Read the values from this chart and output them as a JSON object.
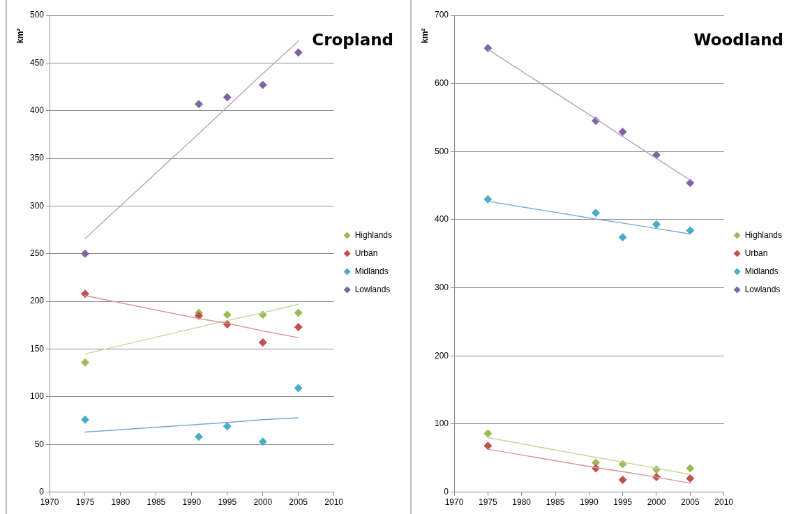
{
  "chart_data": [
    {
      "type": "scatter",
      "title": "Cropland",
      "ylabel": "km²",
      "xlim": [
        1970,
        2010
      ],
      "xticks": [
        1970,
        1975,
        1980,
        1985,
        1990,
        1995,
        2000,
        2005,
        2010
      ],
      "ylim": [
        0,
        500
      ],
      "yticks": [
        0,
        50,
        100,
        150,
        200,
        250,
        300,
        350,
        400,
        450,
        500
      ],
      "grid": "y",
      "legend": "right",
      "marker": "diamond",
      "x": [
        1975,
        1991,
        1995,
        2000,
        2005
      ],
      "series": [
        {
          "name": "Highlands",
          "color": "#9bbb59",
          "values": [
            136,
            188,
            186,
            186,
            188
          ]
        },
        {
          "name": "Urban",
          "color": "#c0504d",
          "values": [
            208,
            185,
            176,
            157,
            173
          ]
        },
        {
          "name": "Midlands",
          "color": "#4bacc6",
          "values": [
            76,
            58,
            69,
            53,
            109
          ]
        },
        {
          "name": "Lowlands",
          "color": "#8064a2",
          "values": [
            250,
            407,
            414,
            427,
            461
          ]
        },
        {
          "type": "line",
          "marker": "none",
          "color": "#c3d69b",
          "values": [
            145,
            173,
            180,
            188,
            197
          ]
        },
        {
          "type": "line",
          "marker": "none",
          "color": "#d99694",
          "values": [
            206,
            182,
            177,
            169,
            162
          ]
        },
        {
          "type": "line",
          "marker": "none",
          "color": "#7ba7d4",
          "values": [
            63,
            71,
            73,
            76,
            78
          ]
        },
        {
          "type": "line",
          "marker": "none",
          "color": "#b3a2c7",
          "values": [
            266,
            376,
            404,
            439,
            473
          ]
        }
      ]
    },
    {
      "type": "scatter",
      "title": "Woodland",
      "ylabel": "km²",
      "xlim": [
        1970,
        2010
      ],
      "xticks": [
        1970,
        1975,
        1980,
        1985,
        1990,
        1995,
        2000,
        2005,
        2010
      ],
      "ylim": [
        0,
        700
      ],
      "yticks": [
        0,
        100,
        200,
        300,
        400,
        500,
        600,
        700
      ],
      "grid": "y",
      "legend": "right",
      "marker": "diamond",
      "x": [
        1975,
        1991,
        1995,
        2000,
        2005
      ],
      "series": [
        {
          "name": "Highlands",
          "color": "#9bbb59",
          "values": [
            86,
            43,
            41,
            33,
            35
          ]
        },
        {
          "name": "Urban",
          "color": "#c0504d",
          "values": [
            68,
            35,
            18,
            22,
            20
          ]
        },
        {
          "name": "Midlands",
          "color": "#4bacc6",
          "values": [
            430,
            410,
            374,
            393,
            384
          ]
        },
        {
          "name": "Lowlands",
          "color": "#8064a2",
          "values": [
            652,
            545,
            529,
            495,
            454
          ]
        },
        {
          "type": "line",
          "marker": "none",
          "color": "#c3d69b",
          "values": [
            80,
            51,
            44,
            35,
            26
          ]
        },
        {
          "type": "line",
          "marker": "none",
          "color": "#d99694",
          "values": [
            63,
            36,
            30,
            22,
            13
          ]
        },
        {
          "type": "line",
          "marker": "none",
          "color": "#7ba7d4",
          "values": [
            427,
            401,
            395,
            387,
            379
          ]
        },
        {
          "type": "line",
          "marker": "none",
          "color": "#b3a2c7",
          "values": [
            650,
            548,
            522,
            490,
            458
          ]
        }
      ]
    }
  ]
}
